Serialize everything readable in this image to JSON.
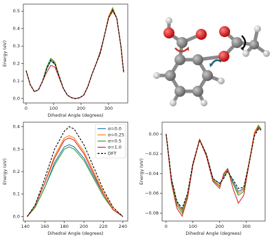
{
  "chart_data": [
    {
      "type": "line",
      "xlabel": "Dihedral Angle (degrees)",
      "ylabel": "Energy (eV)",
      "x": [
        0,
        15,
        30,
        45,
        60,
        75,
        90,
        105,
        120,
        135,
        150,
        165,
        180,
        195,
        210,
        225,
        240,
        255,
        270,
        285,
        300,
        315,
        330,
        345,
        355
      ],
      "xlim": [
        -10,
        370
      ],
      "xticks": [
        0,
        100,
        200,
        300
      ],
      "ylim": [
        -0.025,
        0.54
      ],
      "yticks": [
        {
          "value": 0,
          "label": "0.0"
        },
        0.1,
        0.2,
        0.3,
        0.4,
        0.5
      ],
      "series": [
        {
          "color": "#1f77b4",
          "values": [
            0.16,
            0.08,
            0.04,
            0.05,
            0.1,
            0.17,
            0.215,
            0.195,
            0.13,
            0.06,
            0.02,
            0.005,
            0.0,
            0.005,
            0.02,
            0.07,
            0.14,
            0.2,
            0.26,
            0.36,
            0.46,
            0.51,
            0.46,
            0.3,
            0.15
          ]
        },
        {
          "color": "#ff7f0e",
          "values": [
            0.16,
            0.08,
            0.04,
            0.05,
            0.1,
            0.18,
            0.23,
            0.21,
            0.13,
            0.06,
            0.02,
            0.005,
            0.0,
            0.005,
            0.02,
            0.07,
            0.14,
            0.2,
            0.26,
            0.36,
            0.47,
            0.52,
            0.46,
            0.3,
            0.15
          ]
        },
        {
          "color": "#2ca02c",
          "values": [
            0.16,
            0.08,
            0.04,
            0.05,
            0.1,
            0.18,
            0.23,
            0.2,
            0.13,
            0.06,
            0.02,
            0.005,
            0.0,
            0.005,
            0.02,
            0.07,
            0.14,
            0.2,
            0.26,
            0.36,
            0.46,
            0.515,
            0.46,
            0.3,
            0.15
          ]
        },
        {
          "color": "#d62728",
          "values": [
            0.16,
            0.08,
            0.04,
            0.05,
            0.1,
            0.15,
            0.19,
            0.18,
            0.12,
            0.06,
            0.02,
            0.005,
            0.0,
            0.005,
            0.02,
            0.07,
            0.14,
            0.2,
            0.27,
            0.36,
            0.46,
            0.5,
            0.46,
            0.3,
            0.15
          ]
        },
        {
          "color": "#000000",
          "dashed": true,
          "values": [
            0.16,
            0.08,
            0.04,
            0.05,
            0.1,
            0.17,
            0.22,
            0.2,
            0.13,
            0.06,
            0.02,
            0.005,
            0.0,
            0.005,
            0.02,
            0.07,
            0.14,
            0.2,
            0.26,
            0.36,
            0.46,
            0.505,
            0.46,
            0.3,
            0.15
          ]
        }
      ]
    },
    {
      "type": "line",
      "xlabel": "Dihedral Angle (degrees)",
      "ylabel": "Energy (eV)",
      "x": [
        142,
        150,
        160,
        170,
        180,
        185,
        190,
        200,
        210,
        220,
        230,
        240
      ],
      "xlim": [
        138,
        245
      ],
      "xticks": [
        140,
        160,
        180,
        200,
        220,
        240
      ],
      "ylim": [
        -0.02,
        0.42
      ],
      "yticks": [
        {
          "value": 0,
          "label": "0.0"
        },
        0.1,
        0.2,
        0.3,
        0.4
      ],
      "legend": "upper right",
      "series": [
        {
          "name": "σ=0.0",
          "color": "#1f77b4",
          "values": [
            0,
            0.04,
            0.13,
            0.24,
            0.31,
            0.32,
            0.31,
            0.26,
            0.18,
            0.1,
            0.03,
            0
          ]
        },
        {
          "name": "σ=0.25",
          "color": "#ff7f0e",
          "values": [
            0,
            0.05,
            0.15,
            0.27,
            0.35,
            0.36,
            0.35,
            0.29,
            0.2,
            0.11,
            0.04,
            0
          ]
        },
        {
          "name": "σ=0.5",
          "color": "#2ca02c",
          "values": [
            0,
            0.04,
            0.13,
            0.23,
            0.3,
            0.31,
            0.3,
            0.25,
            0.17,
            0.09,
            0.03,
            0
          ]
        },
        {
          "name": "σ=1.0",
          "color": "#d62728",
          "values": [
            0,
            0.05,
            0.15,
            0.26,
            0.34,
            0.35,
            0.34,
            0.28,
            0.19,
            0.1,
            0.03,
            0
          ]
        },
        {
          "name": "DFT",
          "color": "#000000",
          "dashed": true,
          "values": [
            0,
            0.05,
            0.17,
            0.3,
            0.38,
            0.4,
            0.39,
            0.32,
            0.22,
            0.12,
            0.04,
            0
          ]
        }
      ]
    },
    {
      "type": "line",
      "xlabel": "Dihedral Angle (degrees)",
      "ylabel": "Energy (eV)",
      "x": [
        0,
        20,
        40,
        60,
        80,
        100,
        125,
        150,
        175,
        200,
        215,
        230,
        250,
        270,
        290,
        310,
        330,
        345,
        355
      ],
      "xlim": [
        -15,
        370
      ],
      "xticks": [
        0,
        100,
        200,
        300
      ],
      "ylim": [
        -0.088,
        0.012
      ],
      "yticks": [
        {
          "value": 0,
          "label": "0.00"
        },
        {
          "value": -0.02,
          "label": "−0.02"
        },
        {
          "value": -0.04,
          "label": "−0.04"
        },
        {
          "value": -0.06,
          "label": "−0.06"
        },
        {
          "value": -0.08,
          "label": "−0.08"
        }
      ],
      "series": [
        {
          "color": "#1f77b4",
          "values": [
            0,
            -0.046,
            -0.069,
            -0.077,
            -0.061,
            -0.03,
            -0.006,
            -0.02,
            -0.045,
            -0.05,
            -0.044,
            -0.037,
            -0.048,
            -0.058,
            -0.055,
            -0.029,
            0.0,
            0.006,
            0.004
          ]
        },
        {
          "color": "#ff7f0e",
          "values": [
            0,
            -0.047,
            -0.07,
            -0.078,
            -0.062,
            -0.03,
            -0.005,
            -0.02,
            -0.046,
            -0.052,
            -0.043,
            -0.036,
            -0.05,
            -0.06,
            -0.056,
            -0.028,
            0.002,
            0.009,
            0.005
          ]
        },
        {
          "color": "#2ca02c",
          "values": [
            0,
            -0.048,
            -0.072,
            -0.08,
            -0.063,
            -0.031,
            -0.006,
            -0.021,
            -0.047,
            -0.053,
            -0.042,
            -0.035,
            -0.05,
            -0.062,
            -0.058,
            -0.03,
            0.0,
            0.008,
            0.005
          ]
        },
        {
          "color": "#d62728",
          "values": [
            0,
            -0.05,
            -0.075,
            -0.083,
            -0.065,
            -0.032,
            -0.006,
            -0.022,
            -0.048,
            -0.055,
            -0.04,
            -0.035,
            -0.055,
            -0.07,
            -0.062,
            -0.03,
            0.0,
            0.007,
            0.004
          ]
        },
        {
          "color": "#000000",
          "dashed": true,
          "values": [
            0,
            -0.045,
            -0.068,
            -0.075,
            -0.06,
            -0.03,
            -0.006,
            -0.02,
            -0.045,
            -0.05,
            -0.045,
            -0.038,
            -0.046,
            -0.055,
            -0.054,
            -0.03,
            -0.002,
            0.005,
            0.004
          ]
        }
      ]
    }
  ]
}
